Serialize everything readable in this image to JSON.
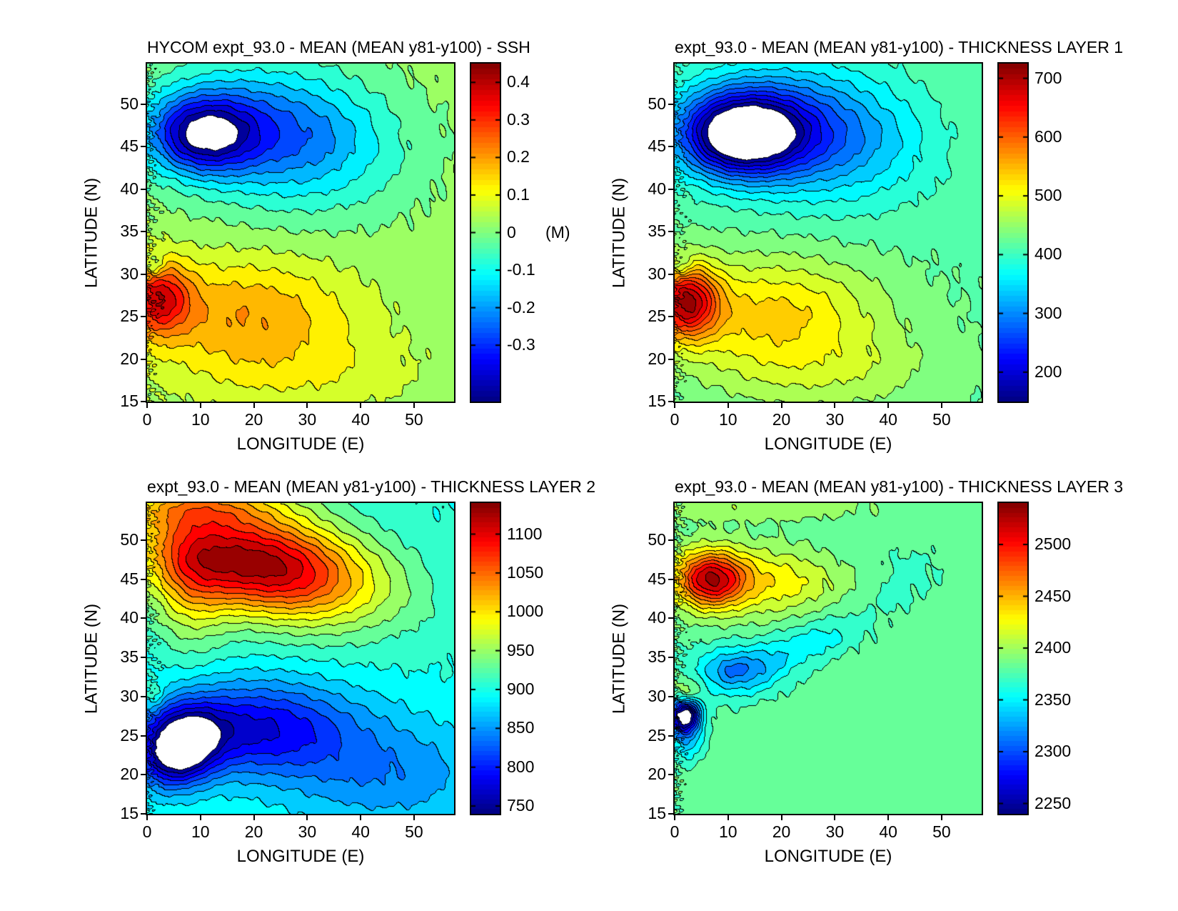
{
  "figure": {
    "background": "#ffffff",
    "text_color": "#000000",
    "contour_line_color": "#000000",
    "colormap": "jet",
    "saturated_color": "#ffffff"
  },
  "chart_data": [
    {
      "type": "filled_contour",
      "title": "HYCOM expt_93.0 - MEAN (MEAN y81-y100) - SSH",
      "xlabel": "LONGITUDE (E)",
      "ylabel": "LATITUDE (N)",
      "xlim": [
        0,
        57.5
      ],
      "ylim": [
        15,
        54.75
      ],
      "xticks": [
        0,
        10,
        20,
        30,
        40,
        50
      ],
      "yticks": [
        15,
        20,
        25,
        30,
        35,
        40,
        45,
        50
      ],
      "clim": [
        -0.45,
        0.45
      ],
      "step": 0.05,
      "colorbar_ticks": [
        0.4,
        0.3,
        0.2,
        0.1,
        0,
        -0.1,
        -0.2,
        -0.3
      ],
      "colorbar_label": "(M)",
      "colorbar_label_at": 0,
      "field": {
        "base": 0.02,
        "noise": 0.22,
        "wnoise": 1.2,
        "blobs": [
          {
            "a": -0.38,
            "x": 10,
            "y": 46.5,
            "sx": 7,
            "sy": 3.2
          },
          {
            "a": -0.28,
            "x": 25,
            "y": 46.5,
            "sx": 14,
            "sy": 5.5,
            "r": -4
          },
          {
            "a": 0.3,
            "x": 2,
            "y": 27.2,
            "sx": 4.2,
            "sy": 3.0
          },
          {
            "a": 0.17,
            "x": 18,
            "y": 25.5,
            "sx": 14,
            "sy": 4.5
          },
          {
            "a": 0.07,
            "x": 28,
            "y": 18.5,
            "sx": 16,
            "sy": 3.5
          },
          {
            "a": -0.13,
            "x": 1.3,
            "y": 30.9,
            "sx": 1.3,
            "sy": 1.0
          }
        ]
      }
    },
    {
      "type": "filled_contour",
      "title": "expt_93.0 - MEAN (MEAN y81-y100) - THICKNESS LAYER 1",
      "xlabel": "LONGITUDE (E)",
      "ylabel": "LATITUDE (N)",
      "xlim": [
        0,
        57.5
      ],
      "ylim": [
        15,
        54.75
      ],
      "xticks": [
        0,
        10,
        20,
        30,
        40,
        50
      ],
      "yticks": [
        15,
        20,
        25,
        30,
        35,
        40,
        45,
        50
      ],
      "clim": [
        150,
        725
      ],
      "step": 25,
      "colorbar_ticks": [
        700,
        600,
        500,
        400,
        300,
        200
      ],
      "colorbar_label": "",
      "colorbar_label_at": null,
      "field": {
        "base": 420,
        "noise": 0.22,
        "wnoise": 1.0,
        "blobs": [
          {
            "a": -300,
            "x": 12,
            "y": 46.5,
            "sx": 8,
            "sy": 3.4
          },
          {
            "a": -150,
            "x": 26,
            "y": 46.8,
            "sx": 13,
            "sy": 5.2,
            "r": -4
          },
          {
            "a": 240,
            "x": 2,
            "y": 26.8,
            "sx": 4.2,
            "sy": 3.0
          },
          {
            "a": 110,
            "x": 18,
            "y": 25.5,
            "sx": 14,
            "sy": 4.5
          },
          {
            "a": 45,
            "x": 28,
            "y": 18.5,
            "sx": 16,
            "sy": 3.5
          },
          {
            "a": -60,
            "x": 1.3,
            "y": 30.9,
            "sx": 1.3,
            "sy": 1.0
          }
        ]
      }
    },
    {
      "type": "filled_contour",
      "title": "expt_93.0 - MEAN (MEAN y81-y100) - THICKNESS LAYER 2",
      "xlabel": "LONGITUDE (E)",
      "ylabel": "LATITUDE (N)",
      "xlim": [
        0,
        57.5
      ],
      "ylim": [
        15,
        54.75
      ],
      "xticks": [
        0,
        10,
        20,
        30,
        40,
        50
      ],
      "yticks": [
        15,
        20,
        25,
        30,
        35,
        40,
        45,
        50
      ],
      "clim": [
        740,
        1140
      ],
      "step": 20,
      "colorbar_ticks": [
        1100,
        1050,
        1000,
        950,
        900,
        850,
        800,
        750
      ],
      "colorbar_label": "",
      "colorbar_label_at": null,
      "field": {
        "base": 900,
        "noise": 0.2,
        "wnoise": 1.0,
        "blobs": [
          {
            "a": 232,
            "x": 21,
            "y": 47,
            "sx": 15,
            "sy": 4.6,
            "r": -7
          },
          {
            "a": 60,
            "x": 8,
            "y": 44,
            "sx": 5,
            "sy": 6
          },
          {
            "a": 70,
            "x": 10,
            "y": 54.5,
            "sx": 12,
            "sy": 2
          },
          {
            "a": -185,
            "x": 6,
            "y": 23.5,
            "sx": 5,
            "sy": 3.2,
            "r": 12
          },
          {
            "a": -120,
            "x": 20,
            "y": 26,
            "sx": 13,
            "sy": 4.2
          },
          {
            "a": -55,
            "x": 45,
            "y": 20,
            "sx": 14,
            "sy": 5
          },
          {
            "a": 40,
            "x": 1.3,
            "y": 30.5,
            "sx": 1.3,
            "sy": 1.2
          }
        ]
      }
    },
    {
      "type": "filled_contour",
      "title": "expt_93.0 - MEAN (MEAN y81-y100) - THICKNESS LAYER 3",
      "xlabel": "LONGITUDE (E)",
      "ylabel": "LATITUDE (N)",
      "xlim": [
        0,
        57.5
      ],
      "ylim": [
        15,
        54.75
      ],
      "xticks": [
        0,
        10,
        20,
        30,
        40,
        50
      ],
      "yticks": [
        15,
        20,
        25,
        30,
        35,
        40,
        45,
        50
      ],
      "clim": [
        2240,
        2540
      ],
      "step": 15,
      "colorbar_ticks": [
        2500,
        2450,
        2400,
        2350,
        2300,
        2250
      ],
      "colorbar_label": "",
      "colorbar_label_at": null,
      "field": {
        "base": 2382,
        "noise": 0.3,
        "wnoise": 1.4,
        "blobs": [
          {
            "a": 125,
            "x": 6.5,
            "y": 45,
            "sx": 4.5,
            "sy": 2.5
          },
          {
            "a": 40,
            "x": 15,
            "y": 44.5,
            "sx": 8.5,
            "sy": 3,
            "r": -5
          },
          {
            "a": 18,
            "x": 24,
            "y": 45.5,
            "sx": 7,
            "sy": 2.5,
            "r": -5
          },
          {
            "a": 20,
            "x": 14,
            "y": 54.2,
            "sx": 16,
            "sy": 1.2
          },
          {
            "a": -155,
            "x": 1.8,
            "y": 27.6,
            "sx": 2.0,
            "sy": 1.5
          },
          {
            "a": -45,
            "x": 2.2,
            "y": 24.5,
            "sx": 2.2,
            "sy": 2.0
          },
          {
            "a": -50,
            "x": 11,
            "y": 33.5,
            "sx": 5.5,
            "sy": 2.2
          },
          {
            "a": -12,
            "x": 10.5,
            "y": 33.5,
            "sx": 2.0,
            "sy": 1.0
          },
          {
            "a": -26,
            "x": 20,
            "y": 35.5,
            "sx": 8,
            "sy": 2.2,
            "r": 20
          },
          {
            "a": -16,
            "x": 30,
            "y": 37.5,
            "sx": 6,
            "sy": 1.8,
            "r": 15
          },
          {
            "a": -13,
            "x": 44,
            "y": 46,
            "sx": 4.5,
            "sy": 2.2
          },
          {
            "a": -10,
            "x": 40.5,
            "y": 42.5,
            "sx": 2.5,
            "sy": 1.3
          },
          {
            "a": 35,
            "x": 2.2,
            "y": 30.8,
            "sx": 1.6,
            "sy": 1.1
          }
        ]
      }
    }
  ]
}
